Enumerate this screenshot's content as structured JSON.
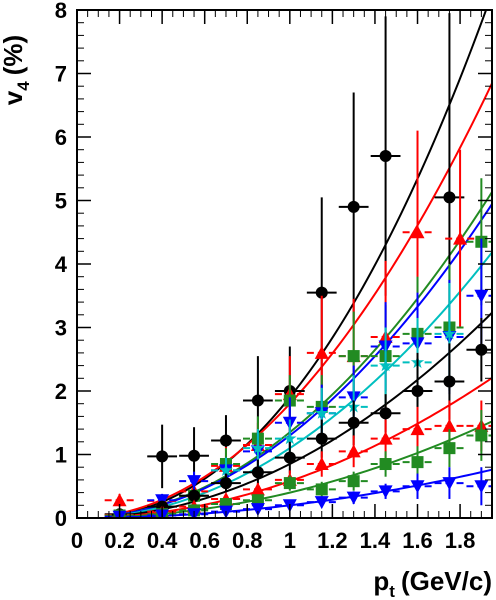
{
  "chart_data": {
    "type": "scatter",
    "xlabel_main": "p",
    "xlabel_sub": "t",
    "xlabel_unit": "(GeV/c)",
    "ylabel_main": "v",
    "ylabel_sub": "4",
    "ylabel_unit": "(%)",
    "xlim": [
      0,
      1.95
    ],
    "ylim": [
      0,
      8
    ],
    "x_ticks": [
      0,
      0.2,
      0.4,
      0.6,
      0.8,
      1,
      1.2,
      1.4,
      1.6,
      1.8
    ],
    "x_tick_labels": [
      "0",
      "0.2",
      "0.4",
      "0.6",
      "0.8",
      "1",
      "1.2",
      "1.4",
      "1.6",
      "1.8"
    ],
    "y_ticks": [
      0,
      1,
      2,
      3,
      4,
      5,
      6,
      7,
      8
    ],
    "y_tick_labels": [
      "0",
      "1",
      "2",
      "3",
      "4",
      "5",
      "6",
      "7",
      "8"
    ],
    "grid": false,
    "series": [
      {
        "marker": "circle",
        "color": "#000000",
        "fit": [
          0,
          1.9,
          2.2
        ],
        "points": [
          [
            0.4,
            0.97,
            0.5
          ],
          [
            0.55,
            0.98,
            0.45
          ],
          [
            0.7,
            1.22,
            0.4
          ],
          [
            0.85,
            1.85,
            0.7
          ],
          [
            1.0,
            2.0,
            0.7
          ],
          [
            1.15,
            3.55,
            1.5
          ],
          [
            1.3,
            4.9,
            1.8
          ],
          [
            1.45,
            5.7,
            2.2
          ],
          [
            1.75,
            5.05,
            2.9
          ]
        ]
      },
      {
        "marker": "triangle-up",
        "color": "#ff0000",
        "fit": [
          0,
          1.8,
          2.0
        ],
        "points": [
          [
            0.2,
            0.28,
            0.1
          ],
          [
            0.4,
            0.27,
            0.1
          ],
          [
            0.55,
            0.42,
            0.15
          ],
          [
            0.7,
            0.82,
            0.3
          ],
          [
            0.85,
            1.15,
            0.35
          ],
          [
            1.0,
            1.95,
            0.6
          ],
          [
            1.15,
            2.6,
            0.9
          ],
          [
            1.3,
            2.55,
            0.9
          ],
          [
            1.45,
            2.85,
            1.2
          ],
          [
            1.6,
            4.5,
            1.6
          ],
          [
            1.8,
            4.4,
            1.4
          ]
        ]
      },
      {
        "marker": "square",
        "color": "#228b22",
        "fit": [
          0,
          1.35,
          2.0
        ],
        "points": [
          [
            0.55,
            0.35,
            0.12
          ],
          [
            0.7,
            0.85,
            0.25
          ],
          [
            0.85,
            1.25,
            0.35
          ],
          [
            1.0,
            1.85,
            0.4
          ],
          [
            1.15,
            1.75,
            0.5
          ],
          [
            1.3,
            2.55,
            0.7
          ],
          [
            1.45,
            2.55,
            0.8
          ],
          [
            1.6,
            2.9,
            0.9
          ],
          [
            1.75,
            3.0,
            1.0
          ],
          [
            1.9,
            4.35,
            1.0
          ]
        ]
      },
      {
        "marker": "triangle-down",
        "color": "#0000ff",
        "fit": [
          0,
          1.3,
          2.0
        ],
        "points": [
          [
            0.4,
            0.28,
            0.1
          ],
          [
            0.55,
            0.58,
            0.15
          ],
          [
            0.7,
            0.75,
            0.2
          ],
          [
            0.85,
            1.05,
            0.3
          ],
          [
            1.0,
            1.5,
            0.4
          ],
          [
            1.15,
            1.65,
            0.45
          ],
          [
            1.3,
            1.9,
            0.5
          ],
          [
            1.45,
            2.7,
            0.7
          ],
          [
            1.6,
            2.75,
            0.8
          ],
          [
            1.75,
            2.85,
            0.9
          ],
          [
            1.9,
            3.5,
            0.9
          ]
        ]
      },
      {
        "marker": "star",
        "color": "#00bfbf",
        "fit": [
          0,
          1.1,
          2.0
        ],
        "points": [
          [
            0.7,
            0.75,
            0.2
          ],
          [
            0.85,
            1.1,
            0.3
          ],
          [
            1.0,
            1.25,
            0.3
          ],
          [
            1.15,
            1.65,
            0.4
          ],
          [
            1.3,
            1.75,
            0.5
          ],
          [
            1.45,
            2.4,
            0.6
          ],
          [
            1.6,
            2.45,
            0.7
          ],
          [
            1.75,
            2.9,
            0.8
          ]
        ]
      },
      {
        "marker": "circle",
        "color": "#000000",
        "fit": [
          0,
          0.85,
          2.0
        ],
        "points": [
          [
            0.2,
            0.06,
            0.05
          ],
          [
            0.4,
            0.18,
            0.06
          ],
          [
            0.55,
            0.35,
            0.1
          ],
          [
            0.7,
            0.55,
            0.15
          ],
          [
            0.85,
            0.72,
            0.2
          ],
          [
            1.0,
            0.95,
            0.25
          ],
          [
            1.15,
            1.25,
            0.3
          ],
          [
            1.3,
            1.5,
            0.35
          ],
          [
            1.45,
            1.65,
            0.3
          ],
          [
            1.6,
            2.0,
            0.6
          ],
          [
            1.75,
            2.15,
            0.6
          ],
          [
            1.9,
            2.65,
            0.5
          ]
        ]
      },
      {
        "marker": "triangle-up",
        "color": "#ff0000",
        "fit": [
          0,
          0.58,
          2.0
        ],
        "points": [
          [
            0.2,
            0.05,
            0.04
          ],
          [
            0.4,
            0.1,
            0.05
          ],
          [
            0.55,
            0.18,
            0.06
          ],
          [
            0.7,
            0.3,
            0.08
          ],
          [
            0.85,
            0.45,
            0.1
          ],
          [
            1.0,
            0.6,
            0.15
          ],
          [
            1.15,
            0.85,
            0.2
          ],
          [
            1.3,
            1.05,
            0.25
          ],
          [
            1.45,
            1.25,
            0.3
          ],
          [
            1.6,
            1.4,
            0.35
          ],
          [
            1.75,
            1.45,
            0.4
          ],
          [
            1.9,
            1.45,
            0.4
          ]
        ]
      },
      {
        "marker": "square",
        "color": "#228b22",
        "fit": [
          0,
          0.4,
          2.0
        ],
        "points": [
          [
            0.2,
            0.04,
            0.03
          ],
          [
            0.4,
            0.06,
            0.04
          ],
          [
            0.55,
            0.12,
            0.05
          ],
          [
            0.7,
            0.22,
            0.06
          ],
          [
            0.85,
            0.28,
            0.08
          ],
          [
            1.0,
            0.55,
            0.12
          ],
          [
            1.15,
            0.45,
            0.12
          ],
          [
            1.3,
            0.58,
            0.15
          ],
          [
            1.45,
            0.85,
            0.2
          ],
          [
            1.6,
            0.88,
            0.25
          ],
          [
            1.75,
            1.1,
            0.3
          ],
          [
            1.9,
            1.3,
            0.4
          ]
        ]
      },
      {
        "marker": "triangle-down",
        "color": "#0000ff",
        "fit": [
          0,
          0.2,
          2.0
        ],
        "points": [
          [
            0.2,
            0.02,
            0.02
          ],
          [
            0.4,
            0.04,
            0.03
          ],
          [
            0.55,
            0.06,
            0.03
          ],
          [
            0.7,
            0.1,
            0.04
          ],
          [
            0.85,
            0.14,
            0.05
          ],
          [
            1.0,
            0.2,
            0.06
          ],
          [
            1.15,
            0.25,
            0.08
          ],
          [
            1.3,
            0.32,
            0.1
          ],
          [
            1.45,
            0.42,
            0.12
          ],
          [
            1.6,
            0.5,
            0.2
          ],
          [
            1.75,
            0.55,
            0.25
          ],
          [
            1.9,
            0.5,
            0.3
          ]
        ]
      }
    ]
  }
}
